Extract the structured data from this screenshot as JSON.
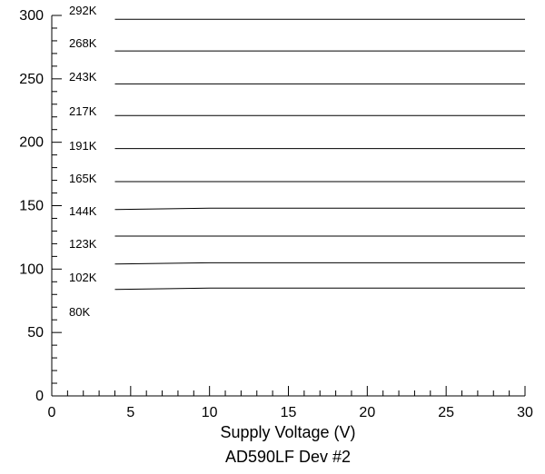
{
  "chart_data": {
    "type": "line",
    "title": "AD590LF Dev #2",
    "xlabel": "Supply Voltage (V)",
    "ylabel": "",
    "xlim": [
      0,
      30
    ],
    "ylim": [
      0,
      300
    ],
    "x_ticks": [
      "0",
      "5",
      "10",
      "15",
      "20",
      "25",
      "30"
    ],
    "y_ticks": [
      "0",
      "50",
      "100",
      "150",
      "200",
      "250",
      "300"
    ],
    "x_minor_step": 1,
    "y_minor_step": 10,
    "grid": false,
    "legend": "none",
    "series": [
      {
        "name": "292K",
        "x": [
          4,
          10,
          20,
          30
        ],
        "y": [
          297,
          297,
          297,
          297
        ]
      },
      {
        "name": "268K",
        "x": [
          4,
          10,
          20,
          30
        ],
        "y": [
          272,
          272,
          272,
          272
        ]
      },
      {
        "name": "243K",
        "x": [
          4,
          10,
          20,
          30
        ],
        "y": [
          246,
          246,
          246,
          246
        ]
      },
      {
        "name": "217K",
        "x": [
          4,
          10,
          20,
          30
        ],
        "y": [
          221,
          221,
          221,
          221
        ]
      },
      {
        "name": "191K",
        "x": [
          4,
          10,
          20,
          30
        ],
        "y": [
          195,
          195,
          195,
          195
        ]
      },
      {
        "name": "165K",
        "x": [
          4,
          10,
          20,
          30
        ],
        "y": [
          169,
          169,
          169,
          169
        ]
      },
      {
        "name": "144K",
        "x": [
          4,
          10,
          20,
          30
        ],
        "y": [
          147,
          148,
          148,
          148
        ]
      },
      {
        "name": "123K",
        "x": [
          4,
          10,
          20,
          30
        ],
        "y": [
          126,
          126,
          126,
          126
        ]
      },
      {
        "name": "102K",
        "x": [
          4,
          10,
          20,
          30
        ],
        "y": [
          104,
          105,
          105,
          105
        ]
      },
      {
        "name": "80K",
        "x": [
          4,
          10,
          20,
          30
        ],
        "y": [
          84,
          85,
          85,
          85
        ]
      }
    ]
  }
}
